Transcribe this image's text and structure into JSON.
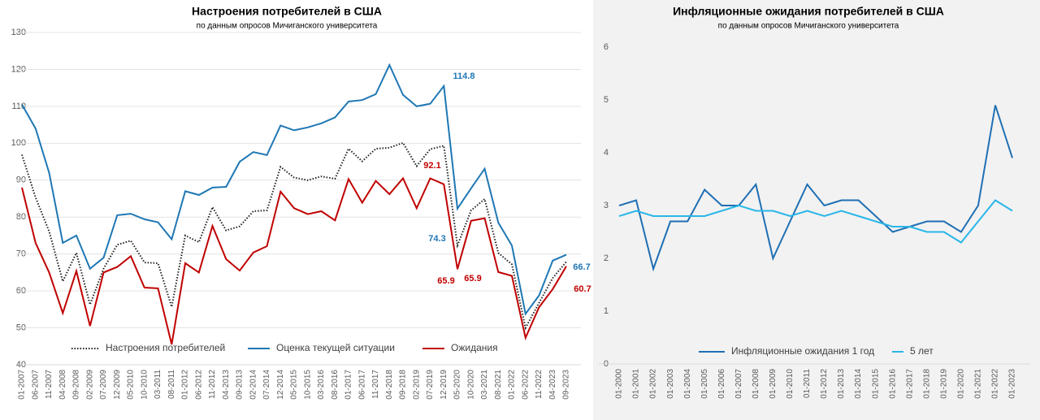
{
  "chart_data": [
    {
      "type": "line",
      "title": "Настроения потребителей в США",
      "subtitle": "по данным опросов Мичиганского университета",
      "categories": [
        "01-2007",
        "06-2007",
        "11-2007",
        "04-2008",
        "09-2008",
        "02-2009",
        "07-2009",
        "12-2009",
        "05-2010",
        "10-2010",
        "03-2011",
        "08-2011",
        "01-2012",
        "06-2012",
        "11-2012",
        "04-2013",
        "09-2013",
        "02-2014",
        "07-2014",
        "12-2014",
        "05-2015",
        "10-2015",
        "03-2016",
        "08-2016",
        "01-2017",
        "06-2017",
        "11-2017",
        "04-2018",
        "09-2018",
        "02-2019",
        "07-2019",
        "12-2019",
        "05-2020",
        "10-2020",
        "03-2021",
        "08-2021",
        "01-2022",
        "06-2022",
        "11-2022",
        "04-2023",
        "09-2023"
      ],
      "series": [
        {
          "name": "Настроения потребителей",
          "color": "#222222",
          "style": "dotted",
          "values": [
            96.9,
            85.3,
            76.1,
            62.6,
            70.3,
            56.3,
            66,
            72.5,
            73.6,
            67.7,
            67.5,
            55.7,
            75,
            73.2,
            82.7,
            76.4,
            77.5,
            81.6,
            81.8,
            93.6,
            90.7,
            90,
            91,
            90.4,
            98.5,
            95.1,
            98.5,
            98.8,
            100.1,
            93.8,
            98.4,
            99.3,
            72.3,
            81.8,
            84.9,
            70.3,
            67.2,
            50,
            56.8,
            63.5,
            67.9
          ]
        },
        {
          "name": "Оценка текущей ситуации",
          "color": "#1f77b4",
          "style": "solid",
          "values": [
            110.5,
            104,
            92,
            73,
            75,
            66,
            69,
            80.5,
            80.9,
            79.4,
            78.6,
            74,
            87,
            86,
            88,
            88.2,
            95,
            97.6,
            96.8,
            104.8,
            103.5,
            104.3,
            105.4,
            107,
            111.3,
            111.7,
            113.3,
            121.2,
            113.1,
            110,
            110.7,
            115.5,
            82.3,
            87.8,
            93.1,
            78.5,
            72.3,
            53.8,
            58.8,
            68.2,
            69.8
          ]
        },
        {
          "name": "Ожидания",
          "color": "#c00000",
          "style": "solid",
          "values": [
            88,
            73,
            65,
            54,
            65.4,
            50.5,
            65,
            66.5,
            69.4,
            60.9,
            60.7,
            45.5,
            67.5,
            65,
            77.6,
            68.6,
            65.5,
            70.4,
            72.1,
            86.9,
            82.4,
            80.8,
            81.6,
            79.1,
            90.3,
            83.9,
            89.8,
            86.2,
            90.5,
            82.4,
            90.5,
            88.9,
            65.9,
            79,
            79.7,
            65.1,
            64.1,
            47.3,
            55.6,
            60.5,
            66.7
          ]
        }
      ],
      "annotations": [
        114.8,
        74.3,
        92.1,
        65.9,
        65.9,
        66.7,
        60.7
      ],
      "ylim": [
        40,
        130
      ],
      "yticks": [
        40,
        50,
        60,
        70,
        80,
        90,
        100,
        110,
        120,
        130
      ],
      "grid": true,
      "legend": "bottom"
    },
    {
      "type": "line",
      "title": "Инфляционные ожидания потребителей в США",
      "subtitle": "по данным опросов Мичиганского университета",
      "categories": [
        "01-2000",
        "01-2001",
        "01-2002",
        "01-2003",
        "01-2004",
        "01-2005",
        "01-2006",
        "01-2007",
        "01-2008",
        "01-2009",
        "01-2010",
        "01-2011",
        "01-2012",
        "01-2013",
        "01-2014",
        "01-2015",
        "01-2016",
        "01-2017",
        "01-2018",
        "01-2019",
        "01-2020",
        "01-2021",
        "01-2022",
        "01-2023"
      ],
      "series": [
        {
          "name": "Инфляционные ожидания 1 год",
          "color": "#1f6fb4",
          "style": "solid",
          "values": [
            3.0,
            3.1,
            1.8,
            2.7,
            2.7,
            3.3,
            3.0,
            3.0,
            3.4,
            2.0,
            2.7,
            3.4,
            3.0,
            3.1,
            3.1,
            2.8,
            2.5,
            2.6,
            2.7,
            2.7,
            2.5,
            3.0,
            4.9,
            3.9
          ]
        },
        {
          "name": "5 лет",
          "color": "#29b6e8",
          "style": "solid",
          "values": [
            2.8,
            2.9,
            2.8,
            2.8,
            2.8,
            2.8,
            2.9,
            3.0,
            2.9,
            2.9,
            2.8,
            2.9,
            2.8,
            2.9,
            2.8,
            2.7,
            2.6,
            2.6,
            2.5,
            2.5,
            2.3,
            2.7,
            3.1,
            2.9
          ]
        }
      ],
      "ylim": [
        0,
        6
      ],
      "yticks": [
        0,
        1,
        2,
        3,
        4,
        5,
        6
      ],
      "grid": false,
      "legend": "bottom"
    }
  ]
}
